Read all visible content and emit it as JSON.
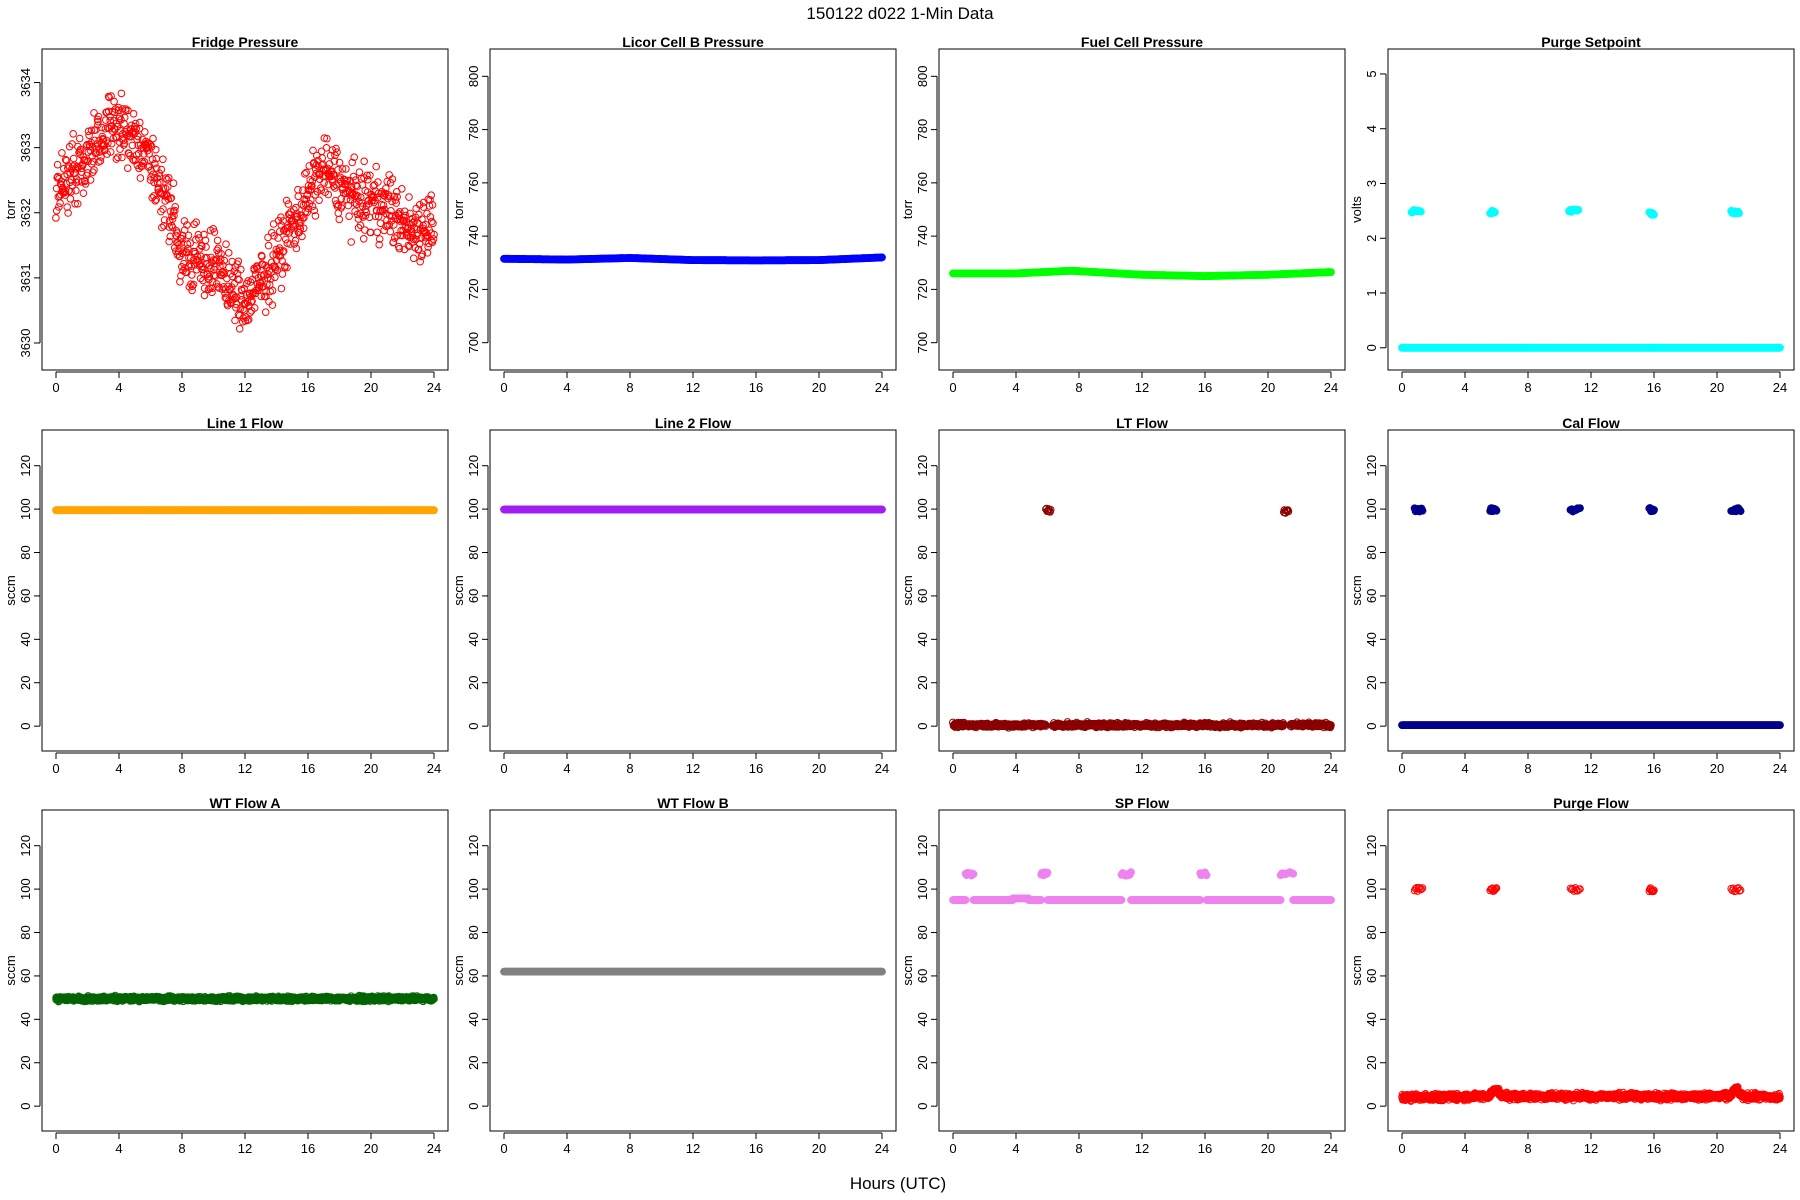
{
  "figure": {
    "title": "150122   d022   1-Min Data",
    "xlabel": "Hours (UTC)"
  },
  "chart_data": [
    {
      "type": "scatter",
      "title": "Fridge Pressure",
      "ylabel": "torr",
      "xlim": [
        0,
        24
      ],
      "xticks": [
        0,
        4,
        8,
        12,
        16,
        20,
        24
      ],
      "ylim": [
        3629.8,
        3634.3
      ],
      "yticks": [
        3630,
        3631,
        3632,
        3633,
        3634
      ],
      "color": "#ff0000",
      "marker": "open-circle",
      "series": [
        {
          "kind": "noisy",
          "x": [
            0,
            2,
            3.5,
            5,
            6.5,
            8,
            10,
            12,
            13,
            15,
            17,
            19,
            21,
            22.5,
            24
          ],
          "y": [
            3632.4,
            3632.8,
            3633.4,
            3633.1,
            3632.5,
            3631.4,
            3631.2,
            3630.6,
            3630.9,
            3631.8,
            3632.7,
            3632.2,
            3632.1,
            3631.7,
            3631.9
          ],
          "spread": 0.75,
          "density": 1
        }
      ]
    },
    {
      "type": "scatter",
      "title": "Licor Cell B Pressure",
      "ylabel": "torr",
      "xlim": [
        0,
        24
      ],
      "xticks": [
        0,
        4,
        8,
        12,
        16,
        20,
        24
      ],
      "ylim": [
        695,
        805
      ],
      "yticks": [
        700,
        720,
        740,
        760,
        780,
        800
      ],
      "color": "#0000ff",
      "marker": "filled-circle",
      "series": [
        {
          "kind": "line",
          "x": [
            0,
            4,
            8,
            12,
            16,
            20,
            24
          ],
          "y": [
            731.5,
            731.2,
            731.8,
            731.0,
            730.9,
            731.0,
            732.0
          ]
        }
      ]
    },
    {
      "type": "scatter",
      "title": "Fuel Cell Pressure",
      "ylabel": "torr",
      "xlim": [
        0,
        24
      ],
      "xticks": [
        0,
        4,
        8,
        12,
        16,
        20,
        24
      ],
      "ylim": [
        695,
        805
      ],
      "yticks": [
        700,
        720,
        740,
        760,
        780,
        800
      ],
      "color": "#00ff00",
      "marker": "filled-circle",
      "series": [
        {
          "kind": "line",
          "x": [
            0,
            4,
            7.5,
            12,
            16,
            20,
            24
          ],
          "y": [
            726.0,
            726.0,
            727.0,
            725.5,
            725.0,
            725.5,
            726.5
          ]
        }
      ]
    },
    {
      "type": "scatter",
      "title": "Purge Setpoint",
      "ylabel": "volts",
      "xlim": [
        0,
        24
      ],
      "xticks": [
        0,
        4,
        8,
        12,
        16,
        20,
        24
      ],
      "ylim": [
        -0.15,
        5.2
      ],
      "yticks": [
        0,
        1,
        2,
        3,
        4,
        5
      ],
      "color": "#00ffff",
      "marker": "filled-circle",
      "series": [
        {
          "kind": "line",
          "x": [
            0,
            24
          ],
          "y": [
            0,
            0
          ]
        },
        {
          "kind": "cluster",
          "x": [
            0.6,
            1.2
          ],
          "y": 2.5
        },
        {
          "kind": "cluster",
          "x": [
            5.6,
            5.9
          ],
          "y": 2.47
        },
        {
          "kind": "cluster",
          "x": [
            10.6,
            11.2
          ],
          "y": 2.5
        },
        {
          "kind": "cluster",
          "x": [
            15.7,
            16.0
          ],
          "y": 2.45
        },
        {
          "kind": "cluster",
          "x": [
            20.9,
            21.4
          ],
          "y": 2.48
        }
      ]
    },
    {
      "type": "scatter",
      "title": "Line 1 Flow",
      "ylabel": "sccm",
      "xlim": [
        0,
        24
      ],
      "xticks": [
        0,
        4,
        8,
        12,
        16,
        20,
        24
      ],
      "ylim": [
        -5,
        130
      ],
      "yticks": [
        0,
        20,
        40,
        60,
        80,
        100,
        120
      ],
      "color": "#ffa500",
      "marker": "filled-circle",
      "series": [
        {
          "kind": "line",
          "x": [
            0,
            24
          ],
          "y": [
            99.5,
            99.5
          ]
        }
      ]
    },
    {
      "type": "scatter",
      "title": "Line 2 Flow",
      "ylabel": "sccm",
      "xlim": [
        0,
        24
      ],
      "xticks": [
        0,
        4,
        8,
        12,
        16,
        20,
        24
      ],
      "ylim": [
        -5,
        130
      ],
      "yticks": [
        0,
        20,
        40,
        60,
        80,
        100,
        120
      ],
      "color": "#a020f0",
      "marker": "filled-circle",
      "series": [
        {
          "kind": "line",
          "x": [
            0,
            24
          ],
          "y": [
            99.8,
            99.8
          ]
        }
      ]
    },
    {
      "type": "scatter",
      "title": "LT Flow",
      "ylabel": "sccm",
      "xlim": [
        0,
        24
      ],
      "xticks": [
        0,
        4,
        8,
        12,
        16,
        20,
        24
      ],
      "ylim": [
        -5,
        130
      ],
      "yticks": [
        0,
        20,
        40,
        60,
        80,
        100,
        120
      ],
      "color": "#8b0000",
      "marker": "open-circle",
      "series": [
        {
          "kind": "noisy",
          "x": [
            0,
            5.9
          ],
          "y": [
            0.5,
            0.5
          ],
          "spread": 1.5,
          "density": 1.2
        },
        {
          "kind": "noisy",
          "x": [
            6.3,
            21.0
          ],
          "y": [
            0.5,
            0.5
          ],
          "spread": 1.5,
          "density": 1.2
        },
        {
          "kind": "noisy",
          "x": [
            21.4,
            24
          ],
          "y": [
            0.5,
            0.5
          ],
          "spread": 1.5,
          "density": 1.2
        },
        {
          "kind": "cluster",
          "x": [
            5.9,
            6.2
          ],
          "y": 99.5
        },
        {
          "kind": "cluster",
          "x": [
            21.0,
            21.3
          ],
          "y": 99.0
        }
      ]
    },
    {
      "type": "scatter",
      "title": "Cal Flow",
      "ylabel": "sccm",
      "xlim": [
        0,
        24
      ],
      "xticks": [
        0,
        4,
        8,
        12,
        16,
        20,
        24
      ],
      "ylim": [
        -5,
        130
      ],
      "yticks": [
        0,
        20,
        40,
        60,
        80,
        100,
        120
      ],
      "color": "#00008b",
      "marker": "filled-circle",
      "series": [
        {
          "kind": "line",
          "x": [
            0,
            24
          ],
          "y": [
            0.5,
            0.5
          ]
        },
        {
          "kind": "cluster",
          "x": [
            0.8,
            1.3
          ],
          "y": 99.7
        },
        {
          "kind": "cluster",
          "x": [
            5.6,
            6.0
          ],
          "y": 99.7
        },
        {
          "kind": "cluster",
          "x": [
            10.7,
            11.3
          ],
          "y": 99.7
        },
        {
          "kind": "cluster",
          "x": [
            15.7,
            16.0
          ],
          "y": 99.7
        },
        {
          "kind": "cluster",
          "x": [
            20.9,
            21.5
          ],
          "y": 99.7
        }
      ]
    },
    {
      "type": "scatter",
      "title": "WT Flow A",
      "ylabel": "sccm",
      "xlim": [
        0,
        24
      ],
      "xticks": [
        0,
        4,
        8,
        12,
        16,
        20,
        24
      ],
      "ylim": [
        -5,
        130
      ],
      "yticks": [
        0,
        20,
        40,
        60,
        80,
        100,
        120
      ],
      "color": "#006400",
      "marker": "open-circle",
      "series": [
        {
          "kind": "noisy",
          "x": [
            0,
            24
          ],
          "y": [
            49.5,
            49.5
          ],
          "spread": 1.6,
          "density": 1.4
        }
      ]
    },
    {
      "type": "scatter",
      "title": "WT Flow B",
      "ylabel": "sccm",
      "xlim": [
        0,
        24
      ],
      "xticks": [
        0,
        4,
        8,
        12,
        16,
        20,
        24
      ],
      "ylim": [
        -5,
        130
      ],
      "yticks": [
        0,
        20,
        40,
        60,
        80,
        100,
        120
      ],
      "color": "#808080",
      "marker": "filled-circle",
      "series": [
        {
          "kind": "line",
          "x": [
            0,
            24
          ],
          "y": [
            62,
            62
          ]
        }
      ]
    },
    {
      "type": "scatter",
      "title": "SP Flow",
      "ylabel": "sccm",
      "xlim": [
        0,
        24
      ],
      "xticks": [
        0,
        4,
        8,
        12,
        16,
        20,
        24
      ],
      "ylim": [
        -5,
        130
      ],
      "yticks": [
        0,
        20,
        40,
        60,
        80,
        100,
        120
      ],
      "color": "#ee82ee",
      "marker": "filled-circle",
      "series": [
        {
          "kind": "line",
          "x": [
            0,
            0.8
          ],
          "y": [
            95,
            95
          ]
        },
        {
          "kind": "line",
          "x": [
            1.3,
            3.8
          ],
          "y": [
            95,
            95
          ]
        },
        {
          "kind": "line",
          "x": [
            3.8,
            4.8
          ],
          "y": [
            95.7,
            95.7
          ]
        },
        {
          "kind": "line",
          "x": [
            4.8,
            5.6
          ],
          "y": [
            95,
            95
          ]
        },
        {
          "kind": "line",
          "x": [
            6.0,
            10.7
          ],
          "y": [
            95,
            95
          ]
        },
        {
          "kind": "line",
          "x": [
            11.3,
            15.7
          ],
          "y": [
            95,
            95
          ]
        },
        {
          "kind": "line",
          "x": [
            16.1,
            20.8
          ],
          "y": [
            95,
            95
          ]
        },
        {
          "kind": "line",
          "x": [
            21.6,
            24
          ],
          "y": [
            95,
            95
          ]
        },
        {
          "kind": "cluster",
          "x": [
            0.8,
            1.3
          ],
          "y": 107
        },
        {
          "kind": "cluster",
          "x": [
            5.6,
            6.0
          ],
          "y": 107
        },
        {
          "kind": "cluster",
          "x": [
            10.7,
            11.3
          ],
          "y": 107
        },
        {
          "kind": "cluster",
          "x": [
            15.7,
            16.1
          ],
          "y": 107
        },
        {
          "kind": "cluster",
          "x": [
            20.8,
            21.6
          ],
          "y": 107
        }
      ]
    },
    {
      "type": "scatter",
      "title": "Purge Flow",
      "ylabel": "sccm",
      "xlim": [
        0,
        24
      ],
      "xticks": [
        0,
        4,
        8,
        12,
        16,
        20,
        24
      ],
      "ylim": [
        -5,
        130
      ],
      "yticks": [
        0,
        20,
        40,
        60,
        80,
        100,
        120
      ],
      "color": "#ff0000",
      "marker": "open-circle",
      "series": [
        {
          "kind": "noisy",
          "x": [
            0,
            5.5,
            5.9,
            6.4,
            20.8,
            21.2,
            21.6,
            24
          ],
          "y": [
            4,
            4.5,
            8,
            4.5,
            4.5,
            8,
            4.5,
            4
          ],
          "spread": 2.2,
          "density": 1.4
        },
        {
          "kind": "cluster",
          "x": [
            0.8,
            1.3
          ],
          "y": 99.8
        },
        {
          "kind": "cluster",
          "x": [
            5.6,
            6.0
          ],
          "y": 99.8
        },
        {
          "kind": "cluster",
          "x": [
            10.7,
            11.3
          ],
          "y": 99.8
        },
        {
          "kind": "cluster",
          "x": [
            15.7,
            16.0
          ],
          "y": 99.8
        },
        {
          "kind": "cluster",
          "x": [
            20.9,
            21.5
          ],
          "y": 99.8
        }
      ]
    }
  ]
}
